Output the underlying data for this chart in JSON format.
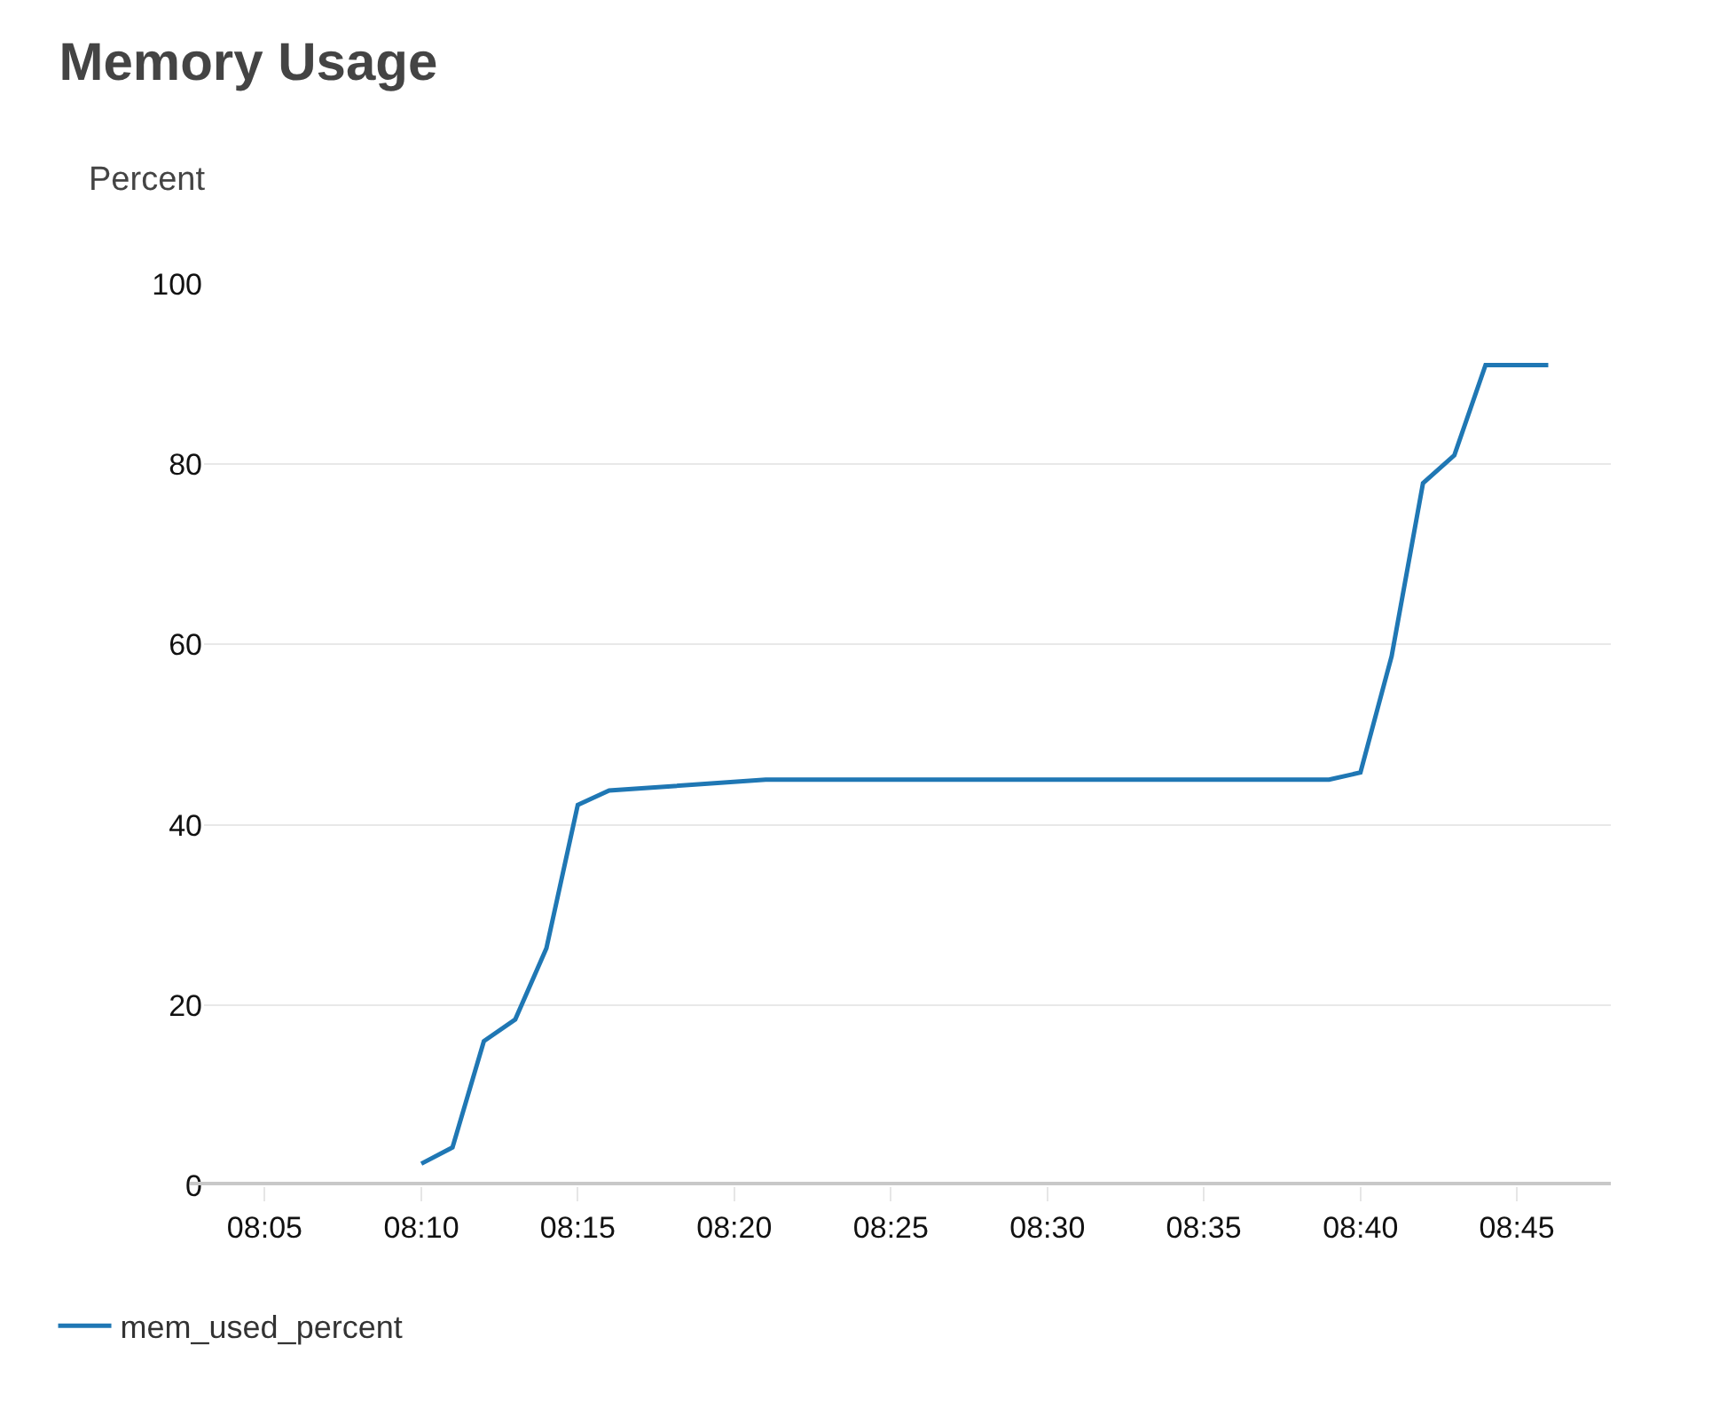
{
  "chart_data": {
    "type": "line",
    "title": "Memory Usage",
    "ylabel": "Percent",
    "x": [
      8.1667,
      8.1833,
      8.2,
      8.2167,
      8.2333,
      8.25,
      8.2667,
      8.35,
      8.65,
      8.6667,
      8.6833,
      8.7,
      8.7167,
      8.7333,
      8.7667
    ],
    "series": [
      {
        "name": "mem_used_percent",
        "color": "#1f77b4",
        "values": [
          2.4,
          4.2,
          16.0,
          18.4,
          26.3,
          42.2,
          43.8,
          45.0,
          45.0,
          45.8,
          58.7,
          77.9,
          81.0,
          91.0,
          91.0
        ]
      }
    ],
    "xlim": [
      8.051,
      8.8
    ],
    "xticks": [
      {
        "value": 8.0833,
        "label": "08:05"
      },
      {
        "value": 8.1667,
        "label": "08:10"
      },
      {
        "value": 8.25,
        "label": "08:15"
      },
      {
        "value": 8.3333,
        "label": "08:20"
      },
      {
        "value": 8.4167,
        "label": "08:25"
      },
      {
        "value": 8.5,
        "label": "08:30"
      },
      {
        "value": 8.5833,
        "label": "08:35"
      },
      {
        "value": 8.6667,
        "label": "08:40"
      },
      {
        "value": 8.75,
        "label": "08:45"
      }
    ],
    "ylim": [
      0,
      100
    ],
    "yticks": [
      0,
      20,
      40,
      60,
      80,
      100
    ],
    "grid": "y",
    "legend": "bottom left",
    "marker": "none",
    "line_style": "solid"
  }
}
